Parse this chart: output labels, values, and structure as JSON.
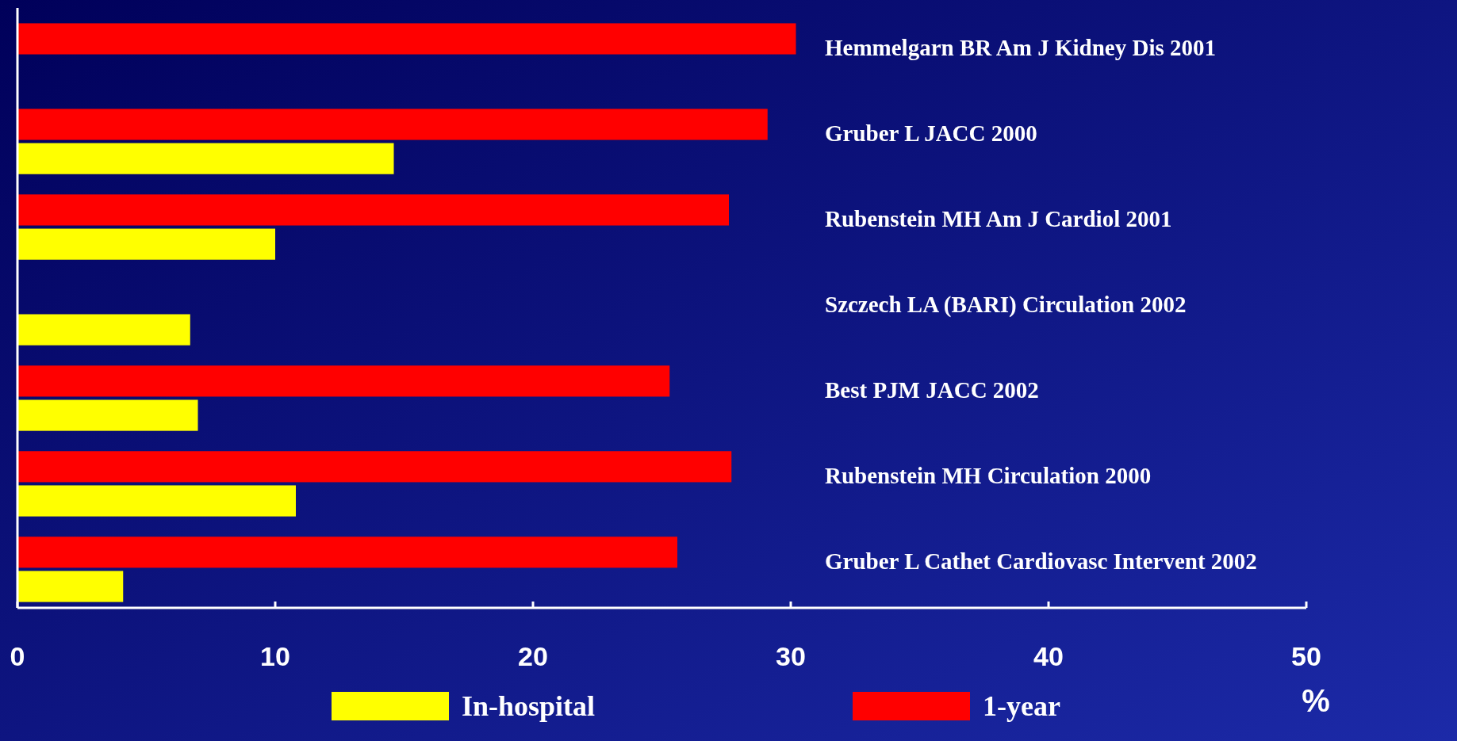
{
  "chart_data": {
    "type": "bar",
    "orientation": "horizontal",
    "xlabel": "%",
    "categories": [
      "Hemmelgarn BR Am J Kidney Dis 2001",
      "Gruber L  JACC 2000",
      "Rubenstein MH Am J Cardiol 2001",
      "Szczech LA (BARI) Circulation 2002",
      "Best PJM JACC 2002",
      "Rubenstein MH Circulation 2000",
      "Gruber L Cathet Cardiovasc Intervent 2002"
    ],
    "series": [
      {
        "name": "1-year",
        "color": "#ff0000",
        "values": [
          30.2,
          29.1,
          27.6,
          null,
          25.3,
          27.7,
          25.6
        ]
      },
      {
        "name": "In-hospital",
        "color": "#ffff00",
        "values": [
          null,
          14.6,
          10.0,
          6.7,
          7.0,
          10.8,
          4.1
        ]
      }
    ],
    "xlim": [
      0,
      50
    ],
    "xticks": [
      0,
      10,
      20,
      30,
      40,
      50
    ],
    "grid": false,
    "legend": "bottom"
  }
}
